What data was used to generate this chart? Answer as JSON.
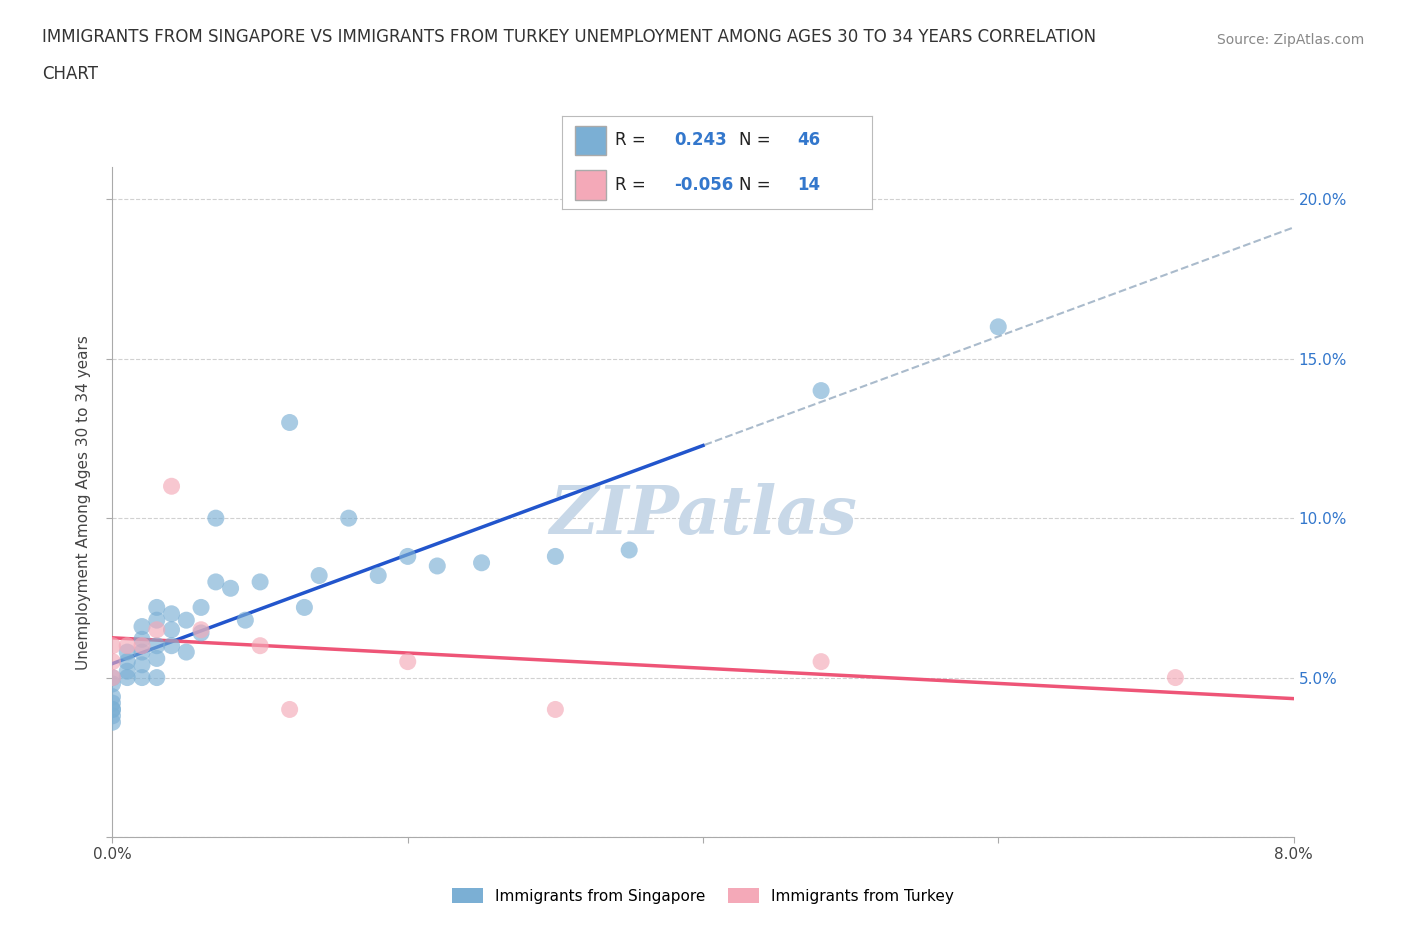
{
  "title_line1": "IMMIGRANTS FROM SINGAPORE VS IMMIGRANTS FROM TURKEY UNEMPLOYMENT AMONG AGES 30 TO 34 YEARS CORRELATION",
  "title_line2": "CHART",
  "source": "Source: ZipAtlas.com",
  "ylabel": "Unemployment Among Ages 30 to 34 years",
  "xlim": [
    0.0,
    0.08
  ],
  "ylim": [
    0.0,
    0.21
  ],
  "R_singapore": 0.243,
  "N_singapore": 46,
  "R_turkey": -0.056,
  "N_turkey": 14,
  "color_singapore": "#7BAFD4",
  "color_turkey": "#F4A9B8",
  "trendline_singapore_color": "#2255CC",
  "trendline_turkey_color": "#EE5577",
  "dashed_color": "#AABBCC",
  "watermark_color": "#C8D8E8",
  "singapore_x": [
    0.0,
    0.0,
    0.0,
    0.0,
    0.0,
    0.0,
    0.0,
    0.0,
    0.001,
    0.001,
    0.001,
    0.001,
    0.002,
    0.002,
    0.002,
    0.002,
    0.002,
    0.003,
    0.003,
    0.003,
    0.003,
    0.003,
    0.004,
    0.004,
    0.004,
    0.005,
    0.005,
    0.006,
    0.006,
    0.007,
    0.007,
    0.008,
    0.009,
    0.01,
    0.012,
    0.013,
    0.014,
    0.016,
    0.018,
    0.02,
    0.022,
    0.025,
    0.03,
    0.035,
    0.048,
    0.06
  ],
  "singapore_y": [
    0.036,
    0.038,
    0.04,
    0.04,
    0.042,
    0.044,
    0.048,
    0.05,
    0.05,
    0.052,
    0.055,
    0.058,
    0.05,
    0.054,
    0.058,
    0.062,
    0.066,
    0.05,
    0.056,
    0.06,
    0.068,
    0.072,
    0.06,
    0.065,
    0.07,
    0.058,
    0.068,
    0.064,
    0.072,
    0.08,
    0.1,
    0.078,
    0.068,
    0.08,
    0.13,
    0.072,
    0.082,
    0.1,
    0.082,
    0.088,
    0.085,
    0.086,
    0.088,
    0.09,
    0.14,
    0.16
  ],
  "turkey_x": [
    0.0,
    0.0,
    0.0,
    0.001,
    0.002,
    0.003,
    0.004,
    0.006,
    0.01,
    0.012,
    0.02,
    0.03,
    0.048,
    0.072
  ],
  "turkey_y": [
    0.05,
    0.055,
    0.06,
    0.06,
    0.06,
    0.065,
    0.11,
    0.065,
    0.06,
    0.04,
    0.055,
    0.04,
    0.055,
    0.05
  ],
  "legend_singapore": "Immigrants from Singapore",
  "legend_turkey": "Immigrants from Turkey",
  "background_color": "#FFFFFF",
  "grid_color": "#CCCCCC"
}
